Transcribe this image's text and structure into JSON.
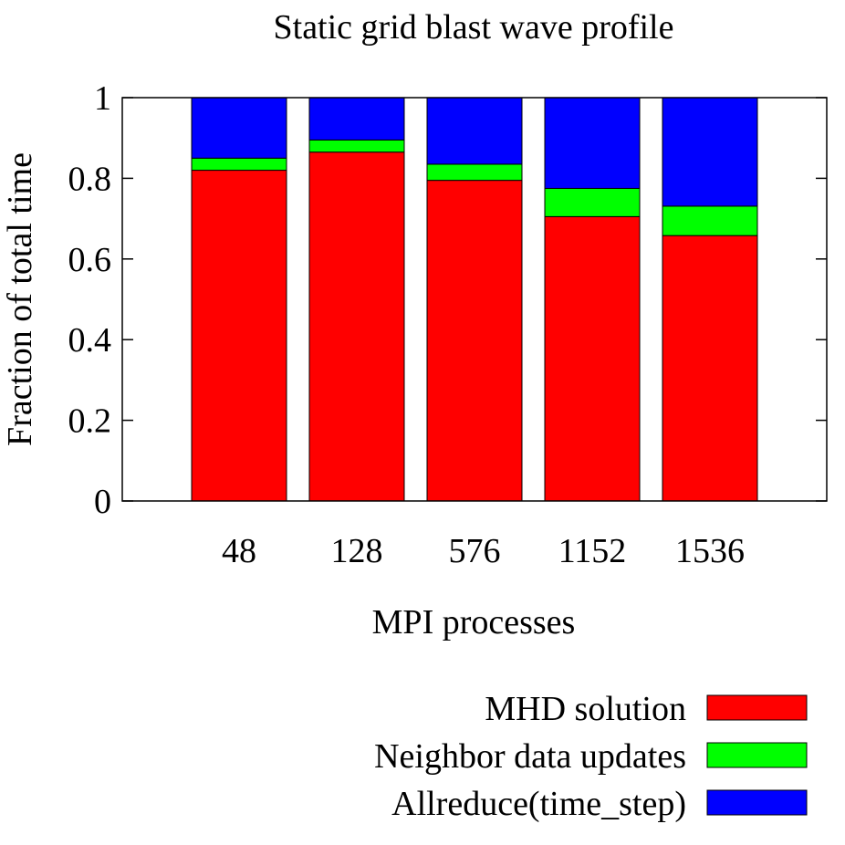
{
  "chart_data": {
    "type": "bar",
    "stacked": true,
    "title": "Static grid blast wave profile",
    "xlabel": "MPI processes",
    "ylabel": "Fraction of total time",
    "ylim": [
      0,
      1
    ],
    "yticks": [
      0,
      0.2,
      0.4,
      0.6,
      0.8,
      1
    ],
    "ytick_labels": [
      "0",
      "0.2",
      "0.4",
      "0.6",
      "0.8",
      "1"
    ],
    "categories": [
      "48",
      "128",
      "576",
      "1152",
      "1536"
    ],
    "series": [
      {
        "name": "MHD solution",
        "color": "#ff0000",
        "values": [
          0.82,
          0.865,
          0.795,
          0.705,
          0.658
        ]
      },
      {
        "name": "Neighbor data updates",
        "color": "#00ff00",
        "values": [
          0.03,
          0.03,
          0.04,
          0.07,
          0.073
        ]
      },
      {
        "name": "Allreduce(time_step)",
        "color": "#0000ff",
        "values": [
          0.15,
          0.105,
          0.165,
          0.225,
          0.269
        ]
      }
    ],
    "legend_position": "bottom-right"
  }
}
